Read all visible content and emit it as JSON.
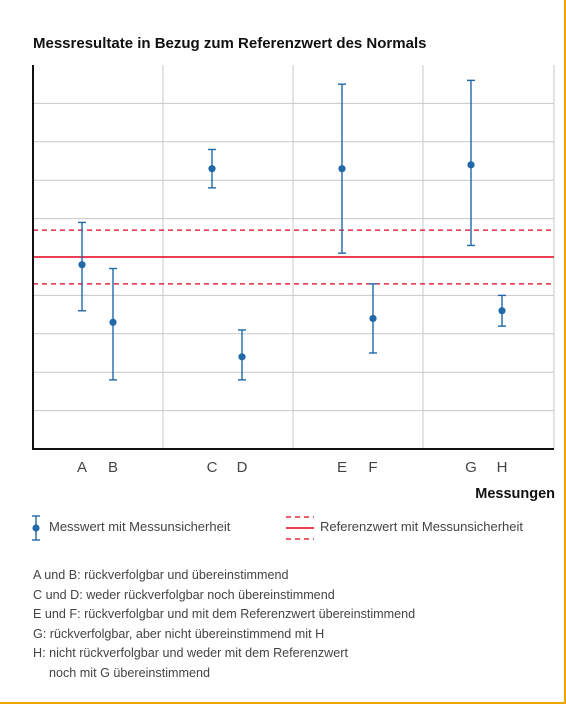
{
  "title": "Messresultate in Bezug zum Referenzwert des Normals",
  "colors": {
    "frame": "#f0a500",
    "series": "#2068a8",
    "reference": "#e2001a",
    "grid": "#c8c8c8",
    "axis": "#111111"
  },
  "chart_data": {
    "type": "scatter",
    "title": "Messresultate in Bezug zum Referenzwert des Normals",
    "xlabel": "Messungen",
    "ylabel": "",
    "ylim": [
      0,
      10
    ],
    "grid": true,
    "categories": [
      "A",
      "B",
      "C",
      "D",
      "E",
      "F",
      "G",
      "H"
    ],
    "series": [
      {
        "name": "Messwert mit Messunsicherheit",
        "points": [
          {
            "label": "A",
            "value": 4.8,
            "lower": 3.6,
            "upper": 5.9
          },
          {
            "label": "B",
            "value": 3.3,
            "lower": 1.8,
            "upper": 4.7
          },
          {
            "label": "C",
            "value": 7.3,
            "lower": 6.8,
            "upper": 7.8
          },
          {
            "label": "D",
            "value": 2.4,
            "lower": 1.8,
            "upper": 3.1
          },
          {
            "label": "E",
            "value": 7.3,
            "lower": 5.1,
            "upper": 9.5
          },
          {
            "label": "F",
            "value": 3.4,
            "lower": 2.5,
            "upper": 4.3
          },
          {
            "label": "G",
            "value": 7.4,
            "lower": 5.3,
            "upper": 9.6
          },
          {
            "label": "H",
            "value": 3.6,
            "lower": 3.2,
            "upper": 4.0
          }
        ]
      },
      {
        "name": "Referenzwert mit Messunsicherheit",
        "reference": 5.0,
        "lower": 4.3,
        "upper": 5.7
      }
    ]
  },
  "legend": {
    "measurement": "Messwert mit Messunsicherheit",
    "reference": "Referenzwert mit Messunsicherheit"
  },
  "notes": [
    "A und B: rückverfolgbar und übereinstimmend",
    "C und D: weder rückverfolgbar noch übereinstimmend",
    "E und F: rückverfolgbar und mit dem Referenzwert übereinstimmend",
    "G: rückverfolgbar, aber nicht übereinstimmend mit H",
    "H: nicht rückverfolgbar und weder mit dem Referenzwert",
    "noch mit G übereinstimmend"
  ]
}
